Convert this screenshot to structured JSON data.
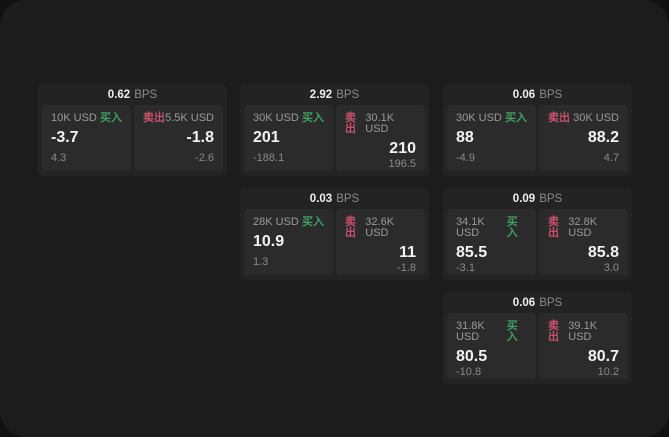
{
  "theme": {
    "background": "#111111",
    "panel": "#1c1c1c",
    "card": "#232323",
    "tile": "#2b2b2b",
    "text_primary": "#f2f2f2",
    "text_muted": "#8a8a8a",
    "buy_green": "#3f9e62",
    "sell_red": "#c8506e"
  },
  "labels": {
    "buy": "买入",
    "sell": "卖出",
    "bps": "BPS"
  },
  "cards": [
    {
      "bps": "0.62",
      "buy": {
        "size": "10K USD",
        "value": "-3.7",
        "sub": "4.3"
      },
      "sell": {
        "size": "5.5K USD",
        "value": "-1.8",
        "sub": "-2.6"
      }
    },
    {
      "bps": "2.92",
      "buy": {
        "size": "30K USD",
        "value": "201",
        "sub": "-188.1"
      },
      "sell": {
        "size": "30.1K USD",
        "value": "210",
        "sub": "196.5"
      }
    },
    {
      "bps": "0.06",
      "buy": {
        "size": "30K USD",
        "value": "88",
        "sub": "-4.9"
      },
      "sell": {
        "size": "30K USD",
        "value": "88.2",
        "sub": "4.7"
      }
    },
    {
      "bps": "0.03",
      "buy": {
        "size": "28K USD",
        "value": "10.9",
        "sub": "1.3"
      },
      "sell": {
        "size": "32.6K USD",
        "value": "11",
        "sub": "-1.8"
      }
    },
    {
      "bps": "0.09",
      "buy": {
        "size": "34.1K USD",
        "value": "85.5",
        "sub": "-3.1"
      },
      "sell": {
        "size": "32.8K USD",
        "value": "85.8",
        "sub": "3.0"
      }
    },
    {
      "bps": "0.06",
      "buy": {
        "size": "31.8K USD",
        "value": "80.5",
        "sub": "-10.8"
      },
      "sell": {
        "size": "39.1K USD",
        "value": "80.7",
        "sub": "10.2"
      }
    }
  ]
}
